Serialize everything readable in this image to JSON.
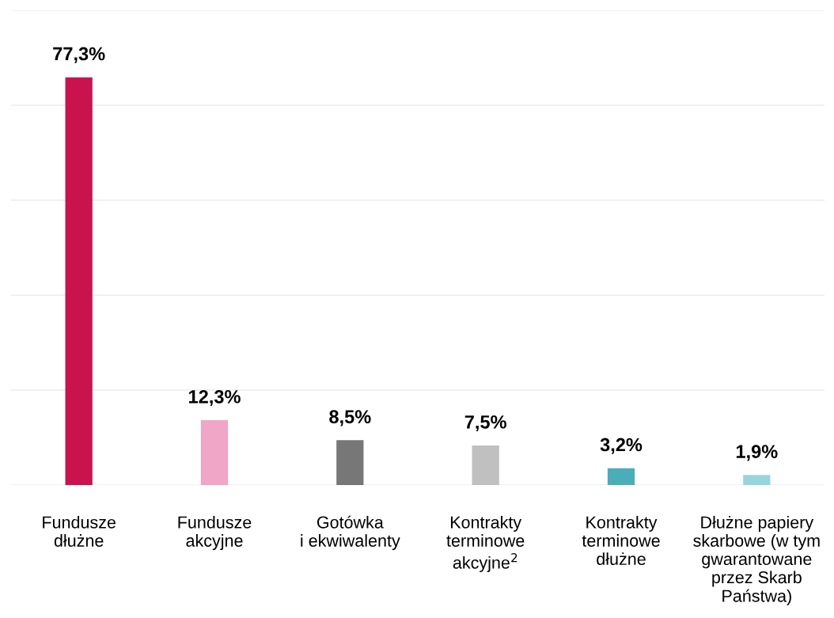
{
  "chart_data": {
    "type": "bar",
    "categories": [
      "Fundusze\ndłużne",
      "Fundusze\nakcyjne",
      "Gotówka\ni ekwiwalenty",
      "Kontrakty\nterminowe\nakcyjne$^{2}$",
      "Kontrakty\nterminowe\ndłużne",
      "Dłużne papiery\nskarbowe (w tym\ngwarantowane\nprzez Skarb\nPaństwa)"
    ],
    "values": [
      77.3,
      12.3,
      8.5,
      7.5,
      3.2,
      1.9
    ],
    "value_labels": [
      "77,3%",
      "12,3%",
      "8,5%",
      "7,5%",
      "3,2%",
      "1,9%"
    ],
    "colors": [
      "#c8134f",
      "#f0a6c6",
      "#777777",
      "#c0c0c0",
      "#4aaeb8",
      "#97d5dc"
    ],
    "ylim": [
      0,
      90
    ],
    "yticks": [
      {
        "value": 0,
        "label": null
      },
      {
        "value": 18,
        "label": null
      },
      {
        "value": 36,
        "label": null
      },
      {
        "value": 54,
        "label": null
      },
      {
        "value": 72,
        "label": null
      },
      {
        "value": 90,
        "label": null
      }
    ],
    "grid": "y",
    "tick_labels": "x"
  }
}
